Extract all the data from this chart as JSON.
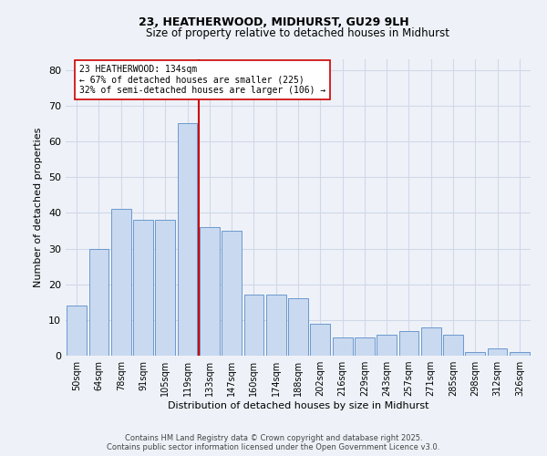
{
  "title1": "23, HEATHERWOOD, MIDHURST, GU29 9LH",
  "title2": "Size of property relative to detached houses in Midhurst",
  "xlabel": "Distribution of detached houses by size in Midhurst",
  "ylabel": "Number of detached properties",
  "categories": [
    "50sqm",
    "64sqm",
    "78sqm",
    "91sqm",
    "105sqm",
    "119sqm",
    "133sqm",
    "147sqm",
    "160sqm",
    "174sqm",
    "188sqm",
    "202sqm",
    "216sqm",
    "229sqm",
    "243sqm",
    "257sqm",
    "271sqm",
    "285sqm",
    "298sqm",
    "312sqm",
    "326sqm"
  ],
  "values": [
    14,
    30,
    41,
    38,
    38,
    65,
    36,
    35,
    17,
    17,
    16,
    9,
    5,
    5,
    6,
    7,
    8,
    6,
    1,
    2,
    1
  ],
  "bar_color": "#c9d9f0",
  "bar_edge_color": "#5b8dc8",
  "annotation_text": "23 HEATHERWOOD: 134sqm\n← 67% of detached houses are smaller (225)\n32% of semi-detached houses are larger (106) →",
  "annotation_box_color": "#ffffff",
  "annotation_box_edge": "#cc0000",
  "vline_color": "#cc0000",
  "grid_color": "#d0d8e8",
  "background_color": "#eef2f8",
  "ylim": [
    0,
    83
  ],
  "yticks": [
    0,
    10,
    20,
    30,
    40,
    50,
    60,
    70,
    80
  ],
  "footer_line1": "Contains HM Land Registry data © Crown copyright and database right 2025.",
  "footer_line2": "Contains public sector information licensed under the Open Government Licence v3.0."
}
